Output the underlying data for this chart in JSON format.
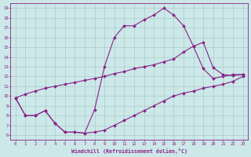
{
  "background_color": "#cce8e8",
  "line_color": "#882288",
  "grid_color": "#aacccc",
  "xlabel": "Windchill (Refroidissement éolien,°C)",
  "xlabel_color": "#882288",
  "tick_color": "#882288",
  "xlim": [
    -0.5,
    23.5
  ],
  "ylim": [
    5.5,
    19.5
  ],
  "yticks": [
    6,
    7,
    8,
    9,
    10,
    11,
    12,
    13,
    14,
    15,
    16,
    17,
    18,
    19
  ],
  "xticks": [
    0,
    1,
    2,
    3,
    4,
    5,
    6,
    7,
    8,
    9,
    10,
    11,
    12,
    13,
    14,
    15,
    16,
    17,
    18,
    19,
    20,
    21,
    22,
    23
  ],
  "line1_x": [
    0,
    1,
    2,
    3,
    4,
    5,
    6,
    7,
    8,
    9,
    10,
    11,
    12,
    13,
    14,
    15,
    16,
    17,
    18,
    19,
    20,
    21,
    22,
    23
  ],
  "line1_y": [
    9.8,
    8.0,
    8.0,
    8.5,
    7.2,
    6.3,
    6.3,
    6.2,
    8.6,
    13.0,
    16.0,
    17.2,
    17.2,
    17.8,
    18.3,
    19.0,
    18.3,
    17.2,
    15.1,
    12.8,
    11.8,
    12.0,
    12.2,
    12.2
  ],
  "line2_x": [
    0,
    1,
    2,
    3,
    4,
    5,
    6,
    7,
    8,
    9,
    10,
    11,
    12,
    13,
    14,
    15,
    16,
    17,
    18,
    19,
    20,
    21,
    22,
    23
  ],
  "line2_y": [
    9.8,
    10.2,
    10.5,
    10.8,
    11.0,
    11.2,
    11.4,
    11.6,
    11.8,
    12.0,
    12.3,
    12.5,
    12.8,
    13.0,
    13.2,
    13.5,
    13.8,
    14.5,
    15.1,
    15.5,
    12.9,
    12.2,
    12.1,
    12.2
  ],
  "line3_x": [
    0,
    1,
    2,
    3,
    4,
    5,
    6,
    7,
    8,
    9,
    10,
    11,
    12,
    13,
    14,
    15,
    16,
    17,
    18,
    19,
    20,
    21,
    22,
    23
  ],
  "line3_y": [
    9.8,
    8.0,
    8.0,
    8.5,
    7.2,
    6.3,
    6.3,
    6.2,
    6.3,
    6.5,
    7.0,
    7.5,
    8.0,
    8.5,
    9.0,
    9.5,
    10.0,
    10.3,
    10.5,
    10.8,
    11.0,
    11.2,
    11.5,
    12.0
  ],
  "marker_style": "D",
  "marker_size": 2,
  "linewidth": 0.8
}
